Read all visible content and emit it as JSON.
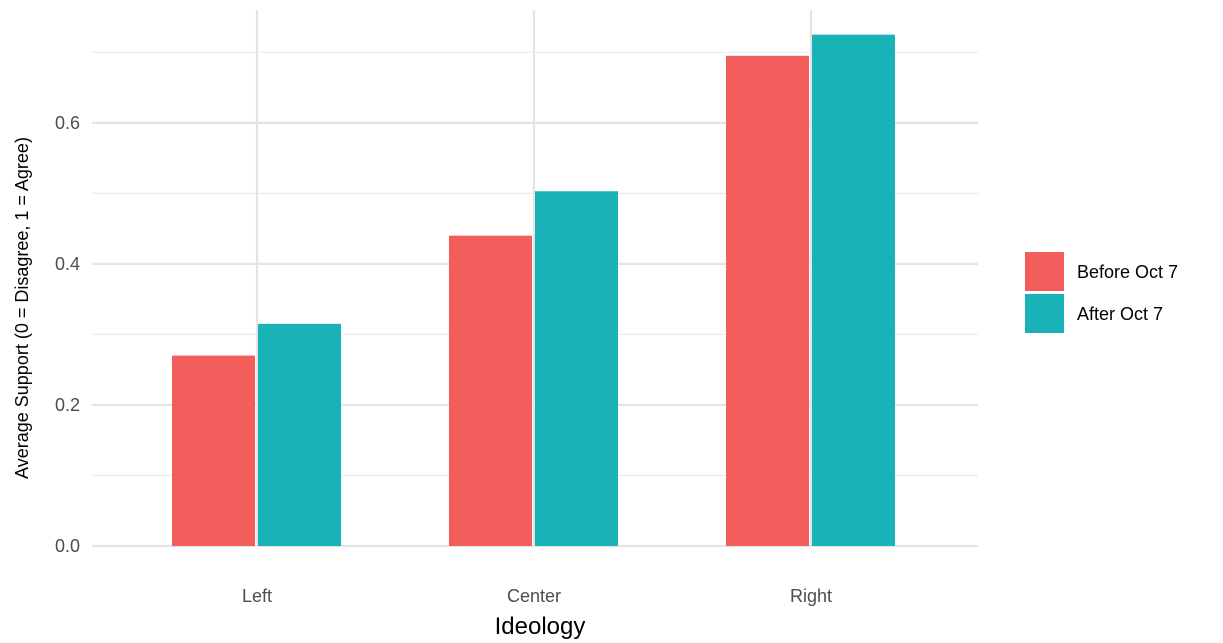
{
  "chart_data": {
    "type": "bar",
    "title": "",
    "xlabel": "Ideology",
    "ylabel": "Average Support (0 = Disagree, 1 = Agree)",
    "categories": [
      "Left",
      "Center",
      "Right"
    ],
    "series": [
      {
        "name": "Before Oct 7",
        "values": [
          0.27,
          0.44,
          0.695
        ],
        "color": "#F25E5B"
      },
      {
        "name": "After Oct 7",
        "values": [
          0.315,
          0.503,
          0.725
        ],
        "color": "#19B2B7"
      }
    ],
    "ylim": [
      0,
      0.76
    ],
    "yticks": [
      0.0,
      0.2,
      0.4,
      0.6
    ],
    "ytick_labels": [
      "0.0",
      "0.2",
      "0.4",
      "0.6"
    ],
    "grid": true,
    "legend_position": "right"
  }
}
